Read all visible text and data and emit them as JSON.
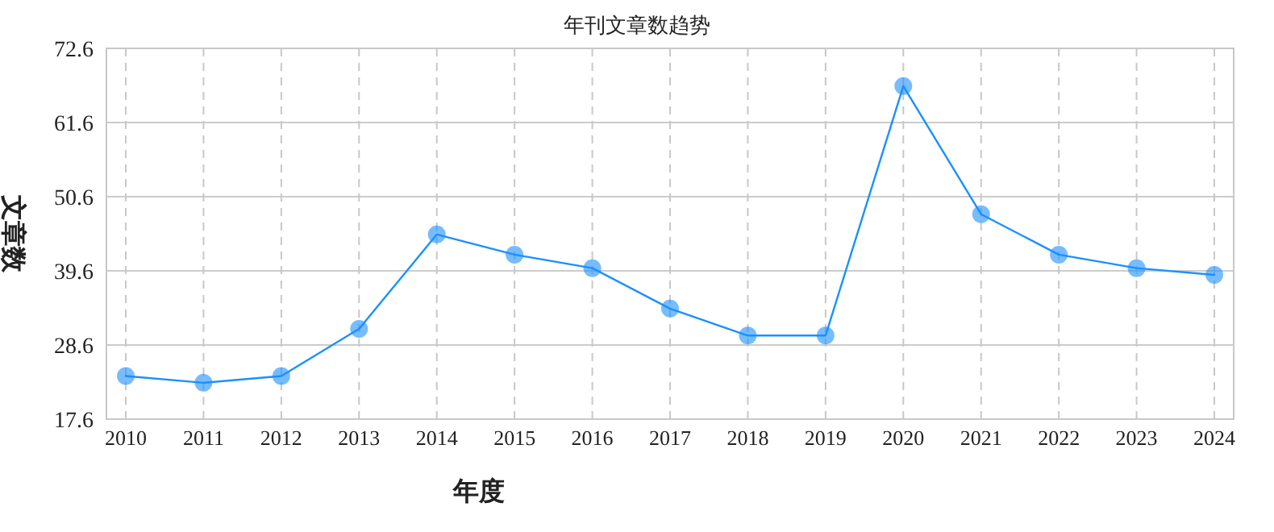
{
  "chart_data": {
    "type": "line",
    "title": "年刊文章数趋势",
    "xlabel": "年度",
    "ylabel": "文章数",
    "categories": [
      "2010",
      "2011",
      "2012",
      "2013",
      "2014",
      "2015",
      "2016",
      "2017",
      "2018",
      "2019",
      "2020",
      "2021",
      "2022",
      "2023",
      "2024"
    ],
    "series": [
      {
        "color": "#1a90ff",
        "values": [
          24,
          23,
          24,
          31,
          45,
          42,
          40,
          34,
          30,
          30,
          67,
          48,
          42,
          40,
          39
        ]
      }
    ],
    "ylim": [
      17.6,
      72.6
    ],
    "yticks": [
      {
        "value": 17.6,
        "label": "17.6"
      },
      {
        "value": 28.6,
        "label": "28.6"
      },
      {
        "value": 39.6,
        "label": "39.6"
      },
      {
        "value": 50.6,
        "label": "50.6"
      },
      {
        "value": 61.6,
        "label": "61.6"
      },
      {
        "value": 72.6,
        "label": "72.6"
      }
    ],
    "grid": true,
    "marker": "circle",
    "line_style": "solid"
  }
}
